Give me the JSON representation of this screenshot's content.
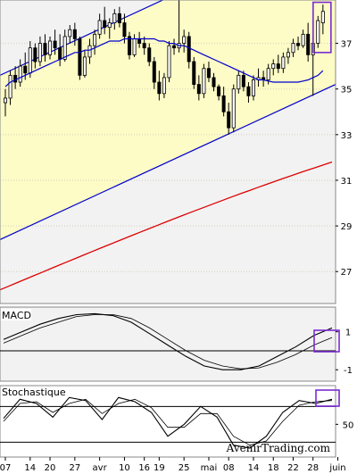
{
  "chart_data": [
    {
      "type": "candlestick",
      "panel": "price",
      "title": "",
      "y_ticks": [
        37,
        35,
        33,
        31,
        29,
        27
      ],
      "ylim": [
        25.6,
        38.9
      ],
      "x_tick_labels": [
        {
          "label": "07",
          "day": 0
        },
        {
          "label": "14",
          "day": 5
        },
        {
          "label": "20",
          "day": 9
        },
        {
          "label": "27",
          "day": 14
        },
        {
          "label": "avr",
          "day": 19
        },
        {
          "label": "10",
          "day": 24
        },
        {
          "label": "16",
          "day": 28
        },
        {
          "label": "19",
          "day": 31
        },
        {
          "label": "25",
          "day": 36
        },
        {
          "label": "mai",
          "day": 41
        },
        {
          "label": "08",
          "day": 45
        },
        {
          "label": "14",
          "day": 50
        },
        {
          "label": "18",
          "day": 54
        },
        {
          "label": "22",
          "day": 58
        },
        {
          "label": "28",
          "day": 62
        },
        {
          "label": "juin",
          "day": 67
        }
      ],
      "ohlc": [
        [
          34.4,
          35.0,
          33.8,
          34.6
        ],
        [
          34.6,
          35.8,
          34.3,
          35.6
        ],
        [
          35.6,
          36.0,
          35.0,
          35.3
        ],
        [
          35.3,
          36.3,
          35.1,
          36.0
        ],
        [
          36.0,
          36.6,
          35.4,
          35.7
        ],
        [
          35.7,
          37.1,
          35.5,
          36.8
        ],
        [
          36.8,
          37.0,
          35.9,
          36.2
        ],
        [
          36.2,
          37.3,
          36.0,
          37.0
        ],
        [
          37.0,
          37.4,
          36.2,
          36.5
        ],
        [
          36.5,
          37.3,
          36.3,
          37.1
        ],
        [
          37.1,
          37.6,
          36.5,
          36.8
        ],
        [
          36.8,
          37.4,
          36.0,
          36.3
        ],
        [
          36.3,
          37.6,
          36.2,
          37.3
        ],
        [
          37.3,
          37.8,
          37.0,
          37.6
        ],
        [
          37.6,
          37.9,
          36.9,
          37.2
        ],
        [
          37.2,
          37.3,
          35.4,
          35.6
        ],
        [
          35.6,
          36.7,
          35.5,
          36.4
        ],
        [
          36.4,
          37.2,
          36.1,
          36.9
        ],
        [
          36.9,
          37.6,
          36.5,
          37.4
        ],
        [
          37.4,
          38.3,
          37.2,
          38.0
        ],
        [
          38.0,
          38.6,
          37.4,
          37.7
        ],
        [
          37.7,
          38.1,
          37.2,
          37.9
        ],
        [
          37.9,
          38.5,
          37.6,
          38.3
        ],
        [
          38.3,
          38.6,
          37.7,
          37.9
        ],
        [
          37.9,
          38.3,
          37.0,
          37.3
        ],
        [
          37.3,
          37.5,
          36.3,
          36.5
        ],
        [
          36.5,
          37.4,
          36.4,
          37.2
        ],
        [
          37.2,
          37.5,
          36.8,
          37.0
        ],
        [
          37.0,
          37.3,
          36.5,
          36.8
        ],
        [
          36.8,
          37.0,
          36.0,
          36.2
        ],
        [
          36.2,
          36.4,
          35.0,
          35.3
        ],
        [
          35.3,
          35.8,
          34.5,
          34.8
        ],
        [
          34.8,
          35.7,
          34.6,
          35.5
        ],
        [
          35.5,
          37.1,
          35.3,
          36.9
        ],
        [
          36.9,
          37.2,
          36.5,
          36.8
        ],
        [
          36.8,
          39.5,
          36.6,
          37.0
        ],
        [
          37.0,
          37.6,
          36.6,
          37.3
        ],
        [
          37.3,
          37.5,
          35.9,
          36.2
        ],
        [
          36.2,
          36.4,
          35.0,
          35.2
        ],
        [
          35.2,
          35.6,
          34.5,
          34.8
        ],
        [
          34.8,
          36.1,
          34.6,
          35.9
        ],
        [
          35.9,
          36.2,
          35.3,
          35.5
        ],
        [
          35.5,
          35.7,
          34.9,
          35.1
        ],
        [
          35.1,
          35.2,
          34.5,
          34.7
        ],
        [
          34.7,
          35.1,
          33.8,
          34.0
        ],
        [
          34.0,
          34.4,
          33.0,
          33.3
        ],
        [
          33.3,
          35.2,
          33.1,
          35.0
        ],
        [
          35.0,
          35.8,
          34.8,
          35.6
        ],
        [
          35.6,
          35.8,
          34.9,
          35.1
        ],
        [
          35.1,
          35.3,
          34.4,
          34.7
        ],
        [
          34.7,
          35.6,
          34.5,
          35.4
        ],
        [
          35.4,
          35.9,
          35.1,
          35.5
        ],
        [
          35.5,
          35.8,
          35.1,
          35.4
        ],
        [
          35.4,
          36.1,
          35.2,
          35.9
        ],
        [
          35.9,
          36.3,
          35.6,
          36.1
        ],
        [
          36.1,
          36.5,
          35.7,
          35.9
        ],
        [
          35.9,
          36.6,
          35.7,
          36.4
        ],
        [
          36.4,
          36.8,
          36.1,
          36.6
        ],
        [
          36.6,
          37.2,
          36.4,
          37.0
        ],
        [
          37.0,
          37.3,
          36.7,
          36.9
        ],
        [
          36.9,
          37.6,
          36.8,
          37.4
        ],
        [
          37.4,
          37.9,
          36.2,
          36.5
        ],
        [
          36.5,
          37.3,
          34.7,
          37.0
        ],
        [
          37.0,
          38.2,
          36.8,
          38.0
        ],
        [
          37.9,
          38.7,
          37.4,
          38.4
        ]
      ],
      "moving_average_20": [
        35.1,
        35.3,
        35.4,
        35.5,
        35.6,
        35.7,
        35.8,
        35.9,
        36.0,
        36.1,
        36.2,
        36.3,
        36.4,
        36.5,
        36.6,
        36.6,
        36.7,
        36.7,
        36.8,
        36.9,
        37.0,
        37.1,
        37.1,
        37.1,
        37.2,
        37.2,
        37.2,
        37.2,
        37.2,
        37.2,
        37.2,
        37.1,
        37.1,
        37.0,
        37.0,
        36.9,
        36.9,
        36.8,
        36.7,
        36.6,
        36.5,
        36.4,
        36.3,
        36.2,
        36.1,
        36.0,
        35.9,
        35.8,
        35.7,
        35.6,
        35.5,
        35.4,
        35.4,
        35.35,
        35.3,
        35.3,
        35.3,
        35.3,
        35.3,
        35.3,
        35.35,
        35.4,
        35.5,
        35.6,
        35.8
      ],
      "moving_average_100": {
        "start": 26.2,
        "end": 31.8
      },
      "trend_channel": {
        "lower": [
          28.4,
          35.2
        ],
        "upper": [
          35.6,
          42.4
        ]
      },
      "highlight": "last-candles"
    },
    {
      "type": "line",
      "panel": "macd",
      "title": "MACD",
      "y_ticks": [
        1,
        -1
      ],
      "series": [
        {
          "values": [
            0.6,
            1.0,
            1.4,
            1.7,
            1.9,
            1.95,
            1.85,
            1.5,
            0.9,
            0.3,
            -0.3,
            -0.8,
            -1.0,
            -1.0,
            -0.8,
            -0.3,
            0.2,
            0.8,
            1.2
          ]
        },
        {
          "values": [
            0.4,
            0.8,
            1.2,
            1.5,
            1.8,
            1.9,
            1.9,
            1.7,
            1.2,
            0.6,
            0.0,
            -0.5,
            -0.8,
            -0.95,
            -0.9,
            -0.6,
            -0.2,
            0.3,
            0.7
          ]
        }
      ]
    },
    {
      "type": "line",
      "panel": "stochastic",
      "title": "Stochastique",
      "y_ticks": [
        50
      ],
      "series": [
        {
          "values": [
            60,
            92,
            85,
            62,
            95,
            90,
            58,
            95,
            88,
            70,
            30,
            50,
            80,
            62,
            15,
            10,
            30,
            70,
            90,
            85,
            92
          ]
        },
        {
          "values": [
            55,
            85,
            88,
            70,
            85,
            92,
            68,
            85,
            92,
            78,
            45,
            45,
            68,
            68,
            30,
            15,
            22,
            55,
            82,
            88,
            90
          ]
        }
      ]
    }
  ],
  "watermark": "AvenirTrading.com",
  "colors": {
    "price_bg": "#fdfbc6",
    "panel_bg": "#f2f2f2",
    "ma20": "#0000cc",
    "ma100": "#dd0000",
    "channel": "#0000cc",
    "highlight": "#7a2bd1"
  }
}
